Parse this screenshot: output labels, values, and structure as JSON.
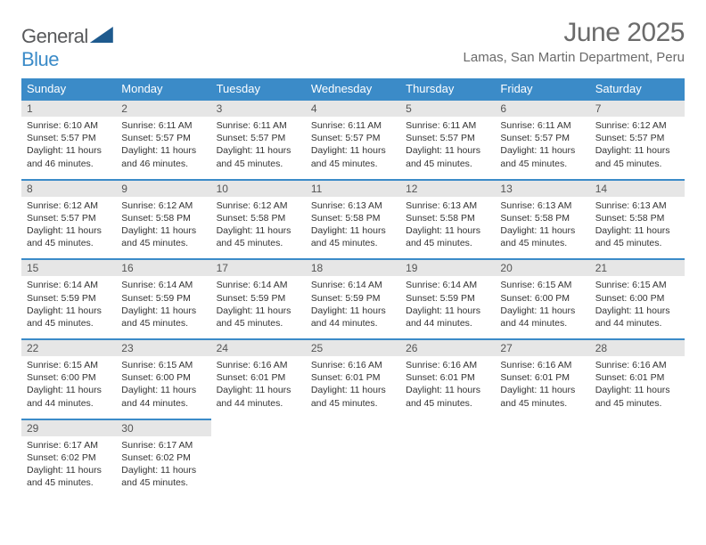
{
  "logo": {
    "text1": "General",
    "text2": "Blue"
  },
  "title": "June 2025",
  "location": "Lamas, San Martin Department, Peru",
  "colors": {
    "header_bg": "#3b8bc8",
    "header_text": "#ffffff",
    "daynum_bg": "#e6e6e6",
    "rule": "#3b8bc8",
    "text": "#333333",
    "title_text": "#6b6b6b"
  },
  "dayNames": [
    "Sunday",
    "Monday",
    "Tuesday",
    "Wednesday",
    "Thursday",
    "Friday",
    "Saturday"
  ],
  "weeks": [
    [
      {
        "n": "1",
        "sr": "Sunrise: 6:10 AM",
        "ss": "Sunset: 5:57 PM",
        "dl1": "Daylight: 11 hours",
        "dl2": "and 46 minutes."
      },
      {
        "n": "2",
        "sr": "Sunrise: 6:11 AM",
        "ss": "Sunset: 5:57 PM",
        "dl1": "Daylight: 11 hours",
        "dl2": "and 46 minutes."
      },
      {
        "n": "3",
        "sr": "Sunrise: 6:11 AM",
        "ss": "Sunset: 5:57 PM",
        "dl1": "Daylight: 11 hours",
        "dl2": "and 45 minutes."
      },
      {
        "n": "4",
        "sr": "Sunrise: 6:11 AM",
        "ss": "Sunset: 5:57 PM",
        "dl1": "Daylight: 11 hours",
        "dl2": "and 45 minutes."
      },
      {
        "n": "5",
        "sr": "Sunrise: 6:11 AM",
        "ss": "Sunset: 5:57 PM",
        "dl1": "Daylight: 11 hours",
        "dl2": "and 45 minutes."
      },
      {
        "n": "6",
        "sr": "Sunrise: 6:11 AM",
        "ss": "Sunset: 5:57 PM",
        "dl1": "Daylight: 11 hours",
        "dl2": "and 45 minutes."
      },
      {
        "n": "7",
        "sr": "Sunrise: 6:12 AM",
        "ss": "Sunset: 5:57 PM",
        "dl1": "Daylight: 11 hours",
        "dl2": "and 45 minutes."
      }
    ],
    [
      {
        "n": "8",
        "sr": "Sunrise: 6:12 AM",
        "ss": "Sunset: 5:57 PM",
        "dl1": "Daylight: 11 hours",
        "dl2": "and 45 minutes."
      },
      {
        "n": "9",
        "sr": "Sunrise: 6:12 AM",
        "ss": "Sunset: 5:58 PM",
        "dl1": "Daylight: 11 hours",
        "dl2": "and 45 minutes."
      },
      {
        "n": "10",
        "sr": "Sunrise: 6:12 AM",
        "ss": "Sunset: 5:58 PM",
        "dl1": "Daylight: 11 hours",
        "dl2": "and 45 minutes."
      },
      {
        "n": "11",
        "sr": "Sunrise: 6:13 AM",
        "ss": "Sunset: 5:58 PM",
        "dl1": "Daylight: 11 hours",
        "dl2": "and 45 minutes."
      },
      {
        "n": "12",
        "sr": "Sunrise: 6:13 AM",
        "ss": "Sunset: 5:58 PM",
        "dl1": "Daylight: 11 hours",
        "dl2": "and 45 minutes."
      },
      {
        "n": "13",
        "sr": "Sunrise: 6:13 AM",
        "ss": "Sunset: 5:58 PM",
        "dl1": "Daylight: 11 hours",
        "dl2": "and 45 minutes."
      },
      {
        "n": "14",
        "sr": "Sunrise: 6:13 AM",
        "ss": "Sunset: 5:58 PM",
        "dl1": "Daylight: 11 hours",
        "dl2": "and 45 minutes."
      }
    ],
    [
      {
        "n": "15",
        "sr": "Sunrise: 6:14 AM",
        "ss": "Sunset: 5:59 PM",
        "dl1": "Daylight: 11 hours",
        "dl2": "and 45 minutes."
      },
      {
        "n": "16",
        "sr": "Sunrise: 6:14 AM",
        "ss": "Sunset: 5:59 PM",
        "dl1": "Daylight: 11 hours",
        "dl2": "and 45 minutes."
      },
      {
        "n": "17",
        "sr": "Sunrise: 6:14 AM",
        "ss": "Sunset: 5:59 PM",
        "dl1": "Daylight: 11 hours",
        "dl2": "and 45 minutes."
      },
      {
        "n": "18",
        "sr": "Sunrise: 6:14 AM",
        "ss": "Sunset: 5:59 PM",
        "dl1": "Daylight: 11 hours",
        "dl2": "and 44 minutes."
      },
      {
        "n": "19",
        "sr": "Sunrise: 6:14 AM",
        "ss": "Sunset: 5:59 PM",
        "dl1": "Daylight: 11 hours",
        "dl2": "and 44 minutes."
      },
      {
        "n": "20",
        "sr": "Sunrise: 6:15 AM",
        "ss": "Sunset: 6:00 PM",
        "dl1": "Daylight: 11 hours",
        "dl2": "and 44 minutes."
      },
      {
        "n": "21",
        "sr": "Sunrise: 6:15 AM",
        "ss": "Sunset: 6:00 PM",
        "dl1": "Daylight: 11 hours",
        "dl2": "and 44 minutes."
      }
    ],
    [
      {
        "n": "22",
        "sr": "Sunrise: 6:15 AM",
        "ss": "Sunset: 6:00 PM",
        "dl1": "Daylight: 11 hours",
        "dl2": "and 44 minutes."
      },
      {
        "n": "23",
        "sr": "Sunrise: 6:15 AM",
        "ss": "Sunset: 6:00 PM",
        "dl1": "Daylight: 11 hours",
        "dl2": "and 44 minutes."
      },
      {
        "n": "24",
        "sr": "Sunrise: 6:16 AM",
        "ss": "Sunset: 6:01 PM",
        "dl1": "Daylight: 11 hours",
        "dl2": "and 44 minutes."
      },
      {
        "n": "25",
        "sr": "Sunrise: 6:16 AM",
        "ss": "Sunset: 6:01 PM",
        "dl1": "Daylight: 11 hours",
        "dl2": "and 45 minutes."
      },
      {
        "n": "26",
        "sr": "Sunrise: 6:16 AM",
        "ss": "Sunset: 6:01 PM",
        "dl1": "Daylight: 11 hours",
        "dl2": "and 45 minutes."
      },
      {
        "n": "27",
        "sr": "Sunrise: 6:16 AM",
        "ss": "Sunset: 6:01 PM",
        "dl1": "Daylight: 11 hours",
        "dl2": "and 45 minutes."
      },
      {
        "n": "28",
        "sr": "Sunrise: 6:16 AM",
        "ss": "Sunset: 6:01 PM",
        "dl1": "Daylight: 11 hours",
        "dl2": "and 45 minutes."
      }
    ],
    [
      {
        "n": "29",
        "sr": "Sunrise: 6:17 AM",
        "ss": "Sunset: 6:02 PM",
        "dl1": "Daylight: 11 hours",
        "dl2": "and 45 minutes."
      },
      {
        "n": "30",
        "sr": "Sunrise: 6:17 AM",
        "ss": "Sunset: 6:02 PM",
        "dl1": "Daylight: 11 hours",
        "dl2": "and 45 minutes."
      },
      null,
      null,
      null,
      null,
      null
    ]
  ]
}
